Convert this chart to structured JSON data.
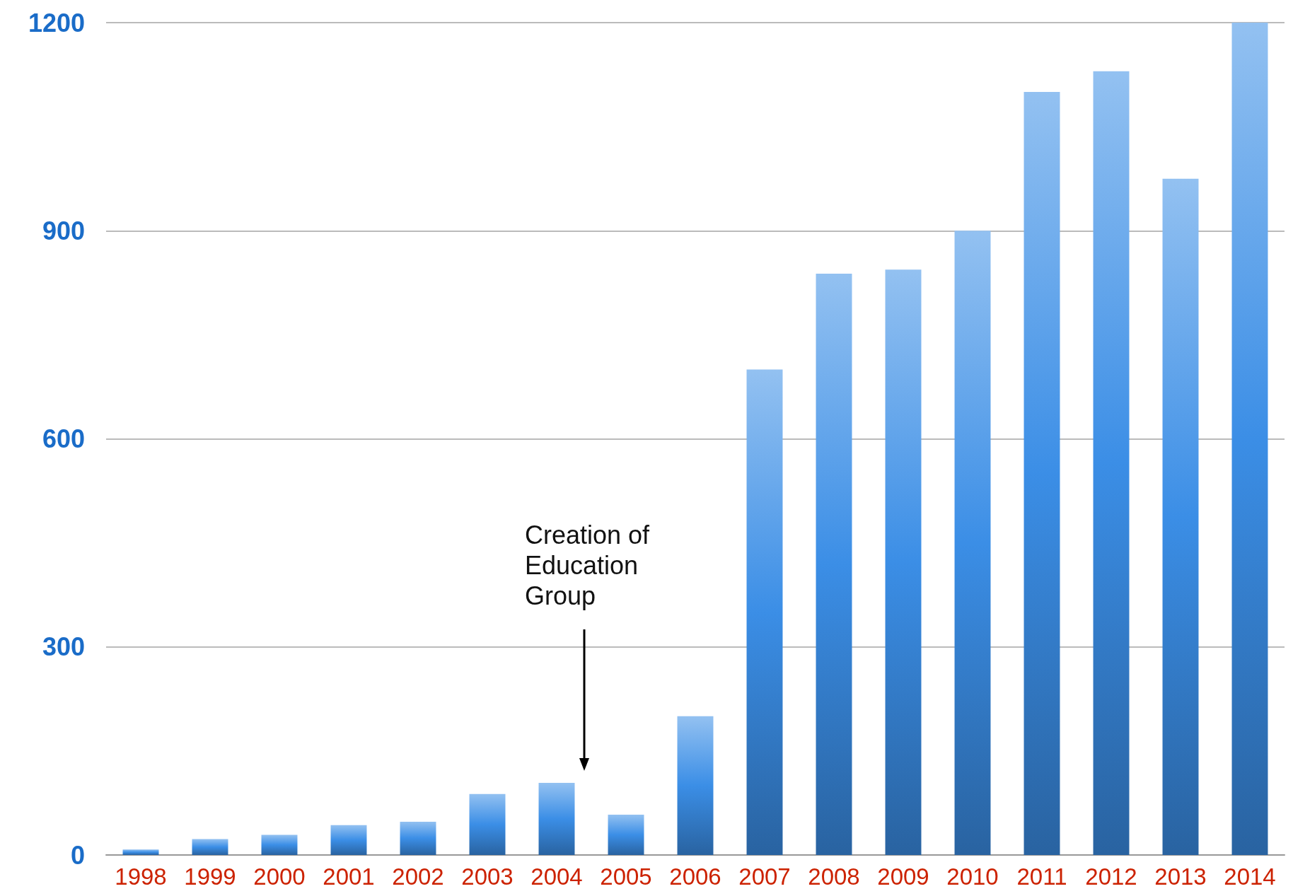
{
  "chart_data": {
    "type": "bar",
    "categories": [
      "1998",
      "1999",
      "2000",
      "2001",
      "2002",
      "2003",
      "2004",
      "2005",
      "2006",
      "2007",
      "2008",
      "2009",
      "2010",
      "2011",
      "2012",
      "2013",
      "2014"
    ],
    "values": [
      8,
      23,
      29,
      43,
      48,
      88,
      104,
      58,
      200,
      700,
      838,
      844,
      900,
      1100,
      1130,
      975,
      1200
    ],
    "color": "#3b8ee6",
    "ylim": [
      0,
      1200
    ],
    "yticks": [
      0,
      300,
      600,
      900,
      1200
    ],
    "grid": "y",
    "annotations": [
      "Creation of\nEducation\nGroup"
    ]
  }
}
